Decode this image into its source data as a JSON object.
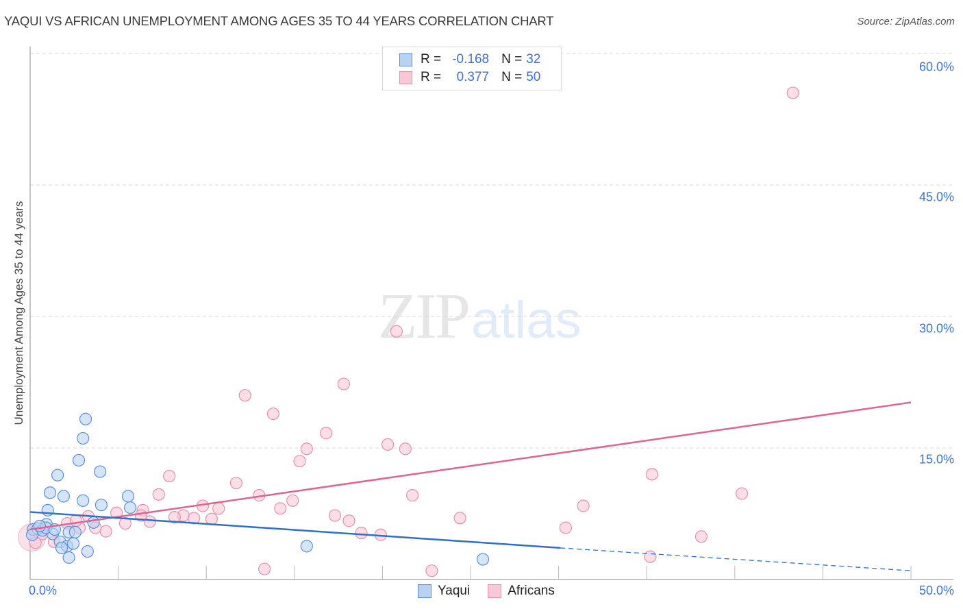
{
  "header": {
    "title": "YAQUI VS AFRICAN UNEMPLOYMENT AMONG AGES 35 TO 44 YEARS CORRELATION CHART",
    "source": "Source: ZipAtlas.com"
  },
  "watermark": {
    "zip": "ZIP",
    "atlas": "atlas"
  },
  "axes": {
    "ylabel": "Unemployment Among Ages 35 to 44 years",
    "yticks": [
      "60.0%",
      "45.0%",
      "30.0%",
      "15.0%"
    ],
    "xtick_left": "0.0%",
    "xtick_right": "50.0%"
  },
  "legend": {
    "rows": [
      {
        "r_label": "R =",
        "r_value": "-0.168",
        "n_label": "N =",
        "n_value": "32"
      },
      {
        "r_label": "R =",
        "r_value": "0.377",
        "n_label": "N =",
        "n_value": "50"
      }
    ],
    "bottom": [
      {
        "label": "Yaqui"
      },
      {
        "label": "Africans"
      }
    ]
  },
  "colors": {
    "yaqui_fill": "#b9d2f2",
    "yaqui_stroke": "#5a8fdc",
    "yaqui_line": "#2b6fd3",
    "africans_fill": "#f9c8d6",
    "africans_stroke": "#e890ab",
    "africans_line": "#e4628f",
    "tick_label": "#3b72d6",
    "grid": "#d9d9d9"
  },
  "chart_data": {
    "type": "scatter",
    "title": "YAQUI VS AFRICAN UNEMPLOYMENT AMONG AGES 35 TO 44 YEARS CORRELATION CHART",
    "xlabel": "",
    "ylabel": "Unemployment Among Ages 35 to 44 years",
    "xlim": [
      0,
      50
    ],
    "ylim": [
      0,
      63
    ],
    "x_tick_labels": [
      "0.0%",
      "50.0%"
    ],
    "y_tick_labels": [
      "15.0%",
      "30.0%",
      "45.0%",
      "60.0%"
    ],
    "y_gridlines": [
      15,
      30,
      45,
      60
    ],
    "grid": true,
    "legend_position": "top-center (stats) and bottom-center (series)",
    "series": [
      {
        "name": "Yaqui",
        "R": -0.168,
        "N": 32,
        "points": [
          [
            3.15,
            18.3
          ],
          [
            3.0,
            16.1
          ],
          [
            2.76,
            13.6
          ],
          [
            3.97,
            12.3
          ],
          [
            1.56,
            11.9
          ],
          [
            1.13,
            9.9
          ],
          [
            1.9,
            9.5
          ],
          [
            3.0,
            9.0
          ],
          [
            5.56,
            9.5
          ],
          [
            4.04,
            8.5
          ],
          [
            1.0,
            7.9
          ],
          [
            5.68,
            8.2
          ],
          [
            0.93,
            6.3
          ],
          [
            3.6,
            6.5
          ],
          [
            0.16,
            5.7
          ],
          [
            0.43,
            5.8
          ],
          [
            0.7,
            5.6
          ],
          [
            1.28,
            5.2
          ],
          [
            2.2,
            5.4
          ],
          [
            1.7,
            4.3
          ],
          [
            2.1,
            3.8
          ],
          [
            2.45,
            4.1
          ],
          [
            1.79,
            3.6
          ],
          [
            3.26,
            3.2
          ],
          [
            2.2,
            2.5
          ],
          [
            15.7,
            3.8
          ],
          [
            25.7,
            2.3
          ],
          [
            0.12,
            5.1
          ],
          [
            0.9,
            5.9
          ],
          [
            0.54,
            6.1
          ],
          [
            1.4,
            5.7
          ],
          [
            2.56,
            5.4
          ]
        ],
        "trend": {
          "x0": 0,
          "y0": 7.7,
          "x_solid_end": 30.1,
          "y_solid_end": 3.6,
          "x1": 50,
          "y1": 1.0
        }
      },
      {
        "name": "Africans",
        "R": 0.377,
        "N": 50,
        "points": [
          [
            43.3,
            55.5
          ],
          [
            20.8,
            28.3
          ],
          [
            17.8,
            22.3
          ],
          [
            12.2,
            21.0
          ],
          [
            13.8,
            18.9
          ],
          [
            16.8,
            16.7
          ],
          [
            20.3,
            15.4
          ],
          [
            21.3,
            14.9
          ],
          [
            15.7,
            14.9
          ],
          [
            15.3,
            13.5
          ],
          [
            7.9,
            11.8
          ],
          [
            35.3,
            12.0
          ],
          [
            11.7,
            11.0
          ],
          [
            7.3,
            9.7
          ],
          [
            13.0,
            9.6
          ],
          [
            21.7,
            9.6
          ],
          [
            40.4,
            9.8
          ],
          [
            14.9,
            9.0
          ],
          [
            9.8,
            8.4
          ],
          [
            10.7,
            8.1
          ],
          [
            31.4,
            8.4
          ],
          [
            6.4,
            7.9
          ],
          [
            14.2,
            8.1
          ],
          [
            3.3,
            7.2
          ],
          [
            4.9,
            7.6
          ],
          [
            17.3,
            7.3
          ],
          [
            8.7,
            7.3
          ],
          [
            8.2,
            7.1
          ],
          [
            9.3,
            7.0
          ],
          [
            10.3,
            6.9
          ],
          [
            5.4,
            6.4
          ],
          [
            6.8,
            6.6
          ],
          [
            18.1,
            6.7
          ],
          [
            24.4,
            7.0
          ],
          [
            2.1,
            6.4
          ],
          [
            2.8,
            5.9
          ],
          [
            30.4,
            5.9
          ],
          [
            4.3,
            5.5
          ],
          [
            18.8,
            5.3
          ],
          [
            19.9,
            5.1
          ],
          [
            38.1,
            4.9
          ],
          [
            3.7,
            5.9
          ],
          [
            0.7,
            5.2
          ],
          [
            0.3,
            4.2
          ],
          [
            1.36,
            4.3
          ],
          [
            35.2,
            2.6
          ],
          [
            13.3,
            1.2
          ],
          [
            22.8,
            1.0
          ],
          [
            2.6,
            6.7
          ],
          [
            6.3,
            7.3
          ]
        ],
        "trend": {
          "x0": 0,
          "y0": 5.7,
          "x1": 50,
          "y1": 20.2
        }
      }
    ]
  }
}
